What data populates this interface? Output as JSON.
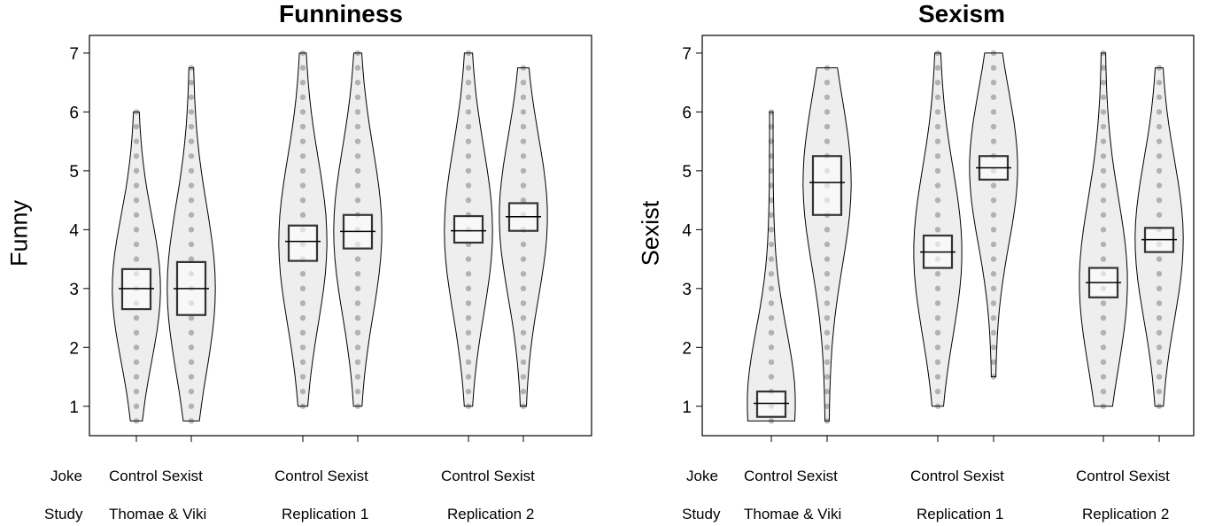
{
  "chart_data": [
    {
      "type": "violin_box",
      "title": "Funniness",
      "ylabel": "Funny",
      "ylim": [
        0.5,
        7.3
      ],
      "yticks": [
        1,
        2,
        3,
        4,
        5,
        6,
        7
      ],
      "x_row_labels": {
        "joke": "Joke",
        "study": "Study"
      },
      "categories": [
        {
          "study": "Thomae & Viki",
          "joke": "Control",
          "mean": 3.0,
          "ci": [
            2.65,
            3.33
          ],
          "min": 0.75,
          "max": 6.0
        },
        {
          "study": "Thomae & Viki",
          "joke": "Sexist",
          "mean": 3.0,
          "ci": [
            2.55,
            3.45
          ],
          "min": 0.75,
          "max": 6.75
        },
        {
          "study": "Replication 1",
          "joke": "Control",
          "mean": 3.8,
          "ci": [
            3.47,
            4.07
          ],
          "min": 1.0,
          "max": 7.0
        },
        {
          "study": "Replication 1",
          "joke": "Sexist",
          "mean": 3.97,
          "ci": [
            3.68,
            4.25
          ],
          "min": 1.0,
          "max": 7.0
        },
        {
          "study": "Replication 2",
          "joke": "Control",
          "mean": 3.98,
          "ci": [
            3.78,
            4.23
          ],
          "min": 1.0,
          "max": 7.0
        },
        {
          "study": "Replication 2",
          "joke": "Sexist",
          "mean": 4.22,
          "ci": [
            3.98,
            4.45
          ],
          "min": 1.0,
          "max": 6.75
        }
      ]
    },
    {
      "type": "violin_box",
      "title": "Sexism",
      "ylabel": "Sexist",
      "ylim": [
        0.5,
        7.3
      ],
      "yticks": [
        1,
        2,
        3,
        4,
        5,
        6,
        7
      ],
      "x_row_labels": {
        "joke": "Joke",
        "study": "Study"
      },
      "categories": [
        {
          "study": "Thomae & Viki",
          "joke": "Control",
          "mean": 1.05,
          "ci": [
            0.82,
            1.25
          ],
          "min": 0.75,
          "max": 6.0
        },
        {
          "study": "Thomae & Viki",
          "joke": "Sexist",
          "mean": 4.8,
          "ci": [
            4.25,
            5.25
          ],
          "min": 0.75,
          "max": 6.75
        },
        {
          "study": "Replication 1",
          "joke": "Control",
          "mean": 3.62,
          "ci": [
            3.35,
            3.9
          ],
          "min": 1.0,
          "max": 7.0
        },
        {
          "study": "Replication 1",
          "joke": "Sexist",
          "mean": 5.05,
          "ci": [
            4.85,
            5.25
          ],
          "min": 1.5,
          "max": 7.0
        },
        {
          "study": "Replication 2",
          "joke": "Control",
          "mean": 3.1,
          "ci": [
            2.85,
            3.35
          ],
          "min": 1.0,
          "max": 7.0
        },
        {
          "study": "Replication 2",
          "joke": "Sexist",
          "mean": 3.83,
          "ci": [
            3.62,
            4.03
          ],
          "min": 1.0,
          "max": 6.75
        }
      ]
    }
  ],
  "panels": [
    {
      "title": "Funniness",
      "ylabel": "Funny"
    },
    {
      "title": "Sexism",
      "ylabel": "Sexist"
    }
  ],
  "xlabels": {
    "joke_row": "Joke",
    "study_row": "Study",
    "joke_pair": "Control Sexist",
    "studies": [
      "Thomae & Viki",
      "Replication 1",
      "Replication 2"
    ]
  },
  "colors": {
    "violin_fill": "#eeeeee",
    "points": "#000000",
    "box": "#333333"
  }
}
